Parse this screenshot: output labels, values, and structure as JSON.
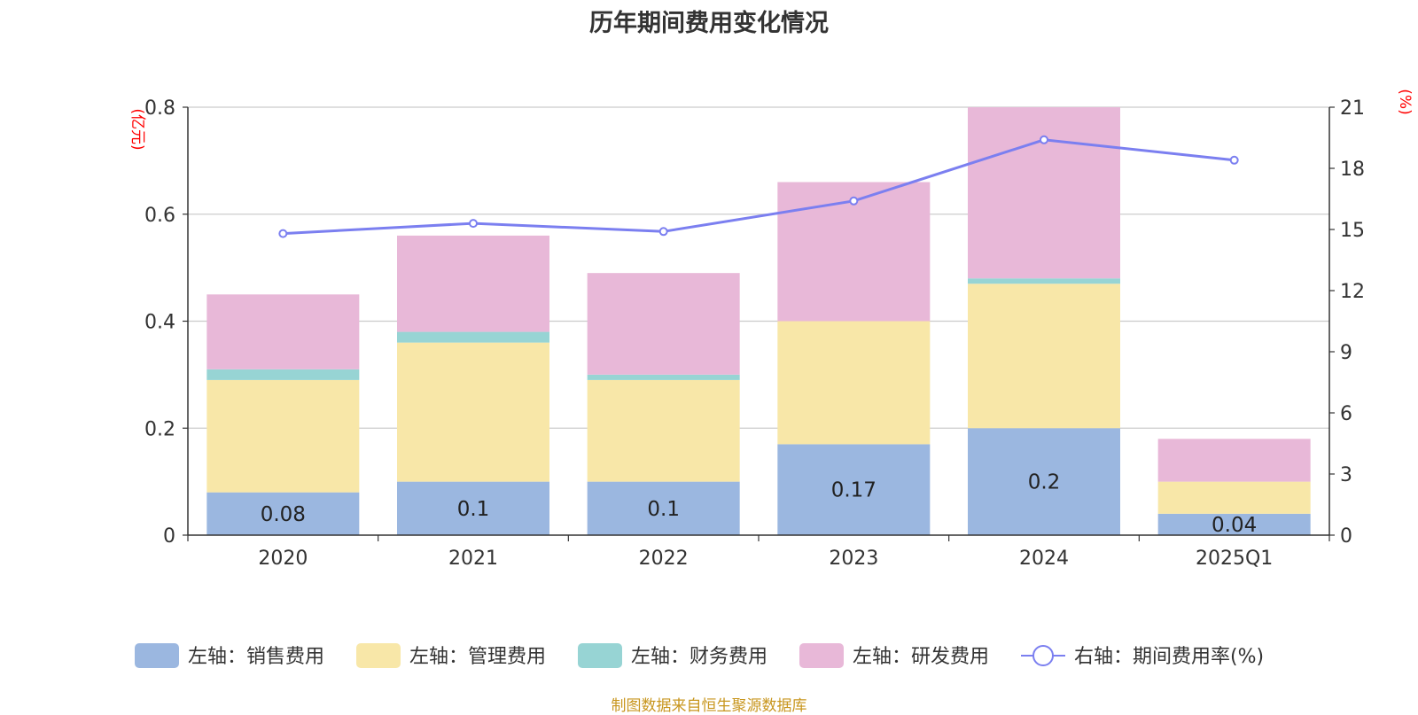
{
  "chart_data": {
    "type": "bar",
    "title": "历年期间费用变化情况",
    "categories": [
      "2020",
      "2021",
      "2022",
      "2023",
      "2024",
      "2025Q1"
    ],
    "y_left": {
      "label": "(亿元)",
      "ylim": [
        0,
        0.8
      ],
      "ticks": [
        "0",
        "0.2",
        "0.4",
        "0.6",
        "0.8"
      ],
      "label_color": "#ff0000"
    },
    "y_right": {
      "label": "(%)",
      "ylim": [
        0,
        21
      ],
      "ticks": [
        "0",
        "3",
        "6",
        "9",
        "12",
        "15",
        "18",
        "21"
      ],
      "label_color": "#ff0000"
    },
    "series": [
      {
        "name": "左轴：销售费用",
        "axis": "left",
        "kind": "bar",
        "color": "#9bb7e0",
        "values": [
          0.08,
          0.1,
          0.1,
          0.17,
          0.2,
          0.04
        ],
        "labels": [
          "0.08",
          "0.1",
          "0.1",
          "0.17",
          "0.2",
          "0.04"
        ]
      },
      {
        "name": "左轴：管理费用",
        "axis": "left",
        "kind": "bar",
        "color": "#f8e7a8",
        "values": [
          0.21,
          0.26,
          0.19,
          0.23,
          0.27,
          0.06
        ]
      },
      {
        "name": "左轴：财务费用",
        "axis": "left",
        "kind": "bar",
        "color": "#97d4d4",
        "values": [
          0.02,
          0.02,
          0.01,
          0.0,
          0.01,
          0.0
        ]
      },
      {
        "name": "左轴：研发费用",
        "axis": "left",
        "kind": "bar",
        "color": "#e8b8d8",
        "values": [
          0.14,
          0.18,
          0.19,
          0.26,
          0.32,
          0.08
        ]
      },
      {
        "name": "右轴：期间费用率(%)",
        "axis": "right",
        "kind": "line",
        "color": "#7b7ff0",
        "values": [
          14.8,
          15.3,
          14.9,
          16.4,
          19.4,
          18.4
        ]
      }
    ],
    "grid": true,
    "legend_position": "bottom"
  },
  "source_note": "制图数据来自恒生聚源数据库"
}
